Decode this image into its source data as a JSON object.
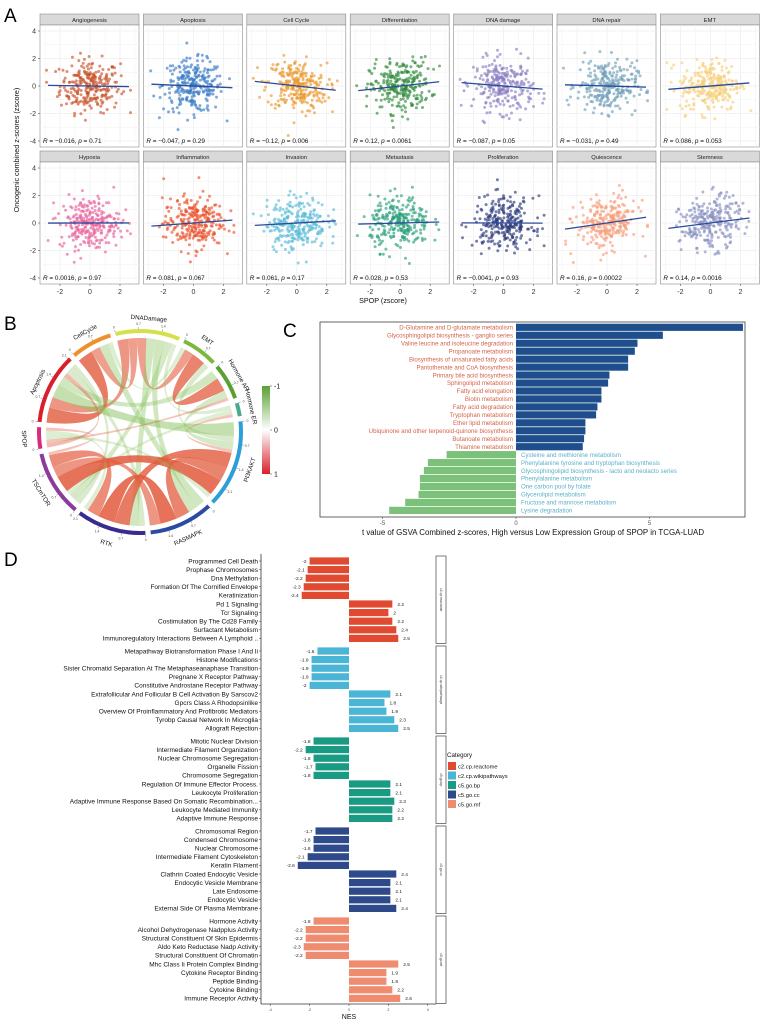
{
  "panel_labels": {
    "a": "A",
    "b": "B",
    "c": "C",
    "d": "D"
  },
  "chart_data": [
    {
      "id": "A",
      "type": "scatter",
      "ylabel": "Oncogenic combined z-scores (zscore)",
      "xlabel": "SPOP (zscore)",
      "xticks": [
        "-2",
        "0",
        "2"
      ],
      "yticks": [
        "4",
        "2",
        "0",
        "-2",
        "-4"
      ],
      "xlim": [
        -3.3,
        3.3
      ],
      "ylim": [
        -4.4,
        4.4
      ],
      "grid": true,
      "points_per_panel": 260,
      "panels": [
        {
          "name": "Angiogenesis",
          "r": -0.016,
          "r_text": "−0.016",
          "p_text": "0.71",
          "color": "#c9532b"
        },
        {
          "name": "Apoptosis",
          "r": -0.047,
          "r_text": "−0.047",
          "p_text": "0.29",
          "color": "#3b7bc6"
        },
        {
          "name": "Cell Cycle",
          "r": -0.12,
          "r_text": "−0.12",
          "p_text": "0.006",
          "color": "#e99a30"
        },
        {
          "name": "Differentiation",
          "r": 0.12,
          "r_text": "0.12",
          "p_text": "0.0061",
          "color": "#2f8a3c"
        },
        {
          "name": "DNA damage",
          "r": -0.087,
          "r_text": "−0.087",
          "p_text": "0.05",
          "color": "#8c7fc2"
        },
        {
          "name": "DNA repair",
          "r": -0.031,
          "r_text": "−0.031",
          "p_text": "0.49",
          "color": "#70a0b9"
        },
        {
          "name": "EMT",
          "r": 0.086,
          "r_text": "0.086",
          "p_text": "0.053",
          "color": "#f6d07a"
        },
        {
          "name": "Hypoxia",
          "r": 0.0016,
          "r_text": "0.0016",
          "p_text": "0.97",
          "color": "#e8629c"
        },
        {
          "name": "Inflammation",
          "r": 0.081,
          "r_text": "0.081",
          "p_text": "0.067",
          "color": "#e9522b"
        },
        {
          "name": "Invasion",
          "r": 0.061,
          "r_text": "0.061",
          "p_text": "0.17",
          "color": "#5bbbd7"
        },
        {
          "name": "Metastasis",
          "r": 0.028,
          "r_text": "0.028",
          "p_text": "0.53",
          "color": "#2aa07c"
        },
        {
          "name": "Proliferation",
          "r": -0.0041,
          "r_text": "−0.0041",
          "p_text": "0.93",
          "color": "#2d3a7c"
        },
        {
          "name": "Quiescence",
          "r": 0.16,
          "r_text": "0.16",
          "p_text": "0.00022",
          "color": "#f79d7a"
        },
        {
          "name": "Stemness",
          "r": 0.14,
          "r_text": "0.14",
          "p_text": "0.0016",
          "color": "#8991c2"
        }
      ],
      "line_color": "#2a4a9a"
    },
    {
      "id": "B",
      "type": "chord",
      "tick_step": 0.7,
      "sectors": [
        {
          "name": "DNADamage",
          "color": "#d5e04b"
        },
        {
          "name": "EMT",
          "color": "#7cb83b"
        },
        {
          "name": "Hormone AR",
          "color": "#5a9f31"
        },
        {
          "name": "Hormone ER",
          "color": "#4aa98a"
        },
        {
          "name": "PI3KAKT",
          "color": "#2b9fd9"
        },
        {
          "name": "RASMAPK",
          "color": "#2b4aa1"
        },
        {
          "name": "RTK",
          "color": "#3a2b8f"
        },
        {
          "name": "TSCmTOR",
          "color": "#8b3b9b"
        },
        {
          "name": "SPOP",
          "color": "#d82b7b"
        },
        {
          "name": "Apoptosis",
          "color": "#d8202b"
        },
        {
          "name": "CellCycle",
          "color": "#f0902b"
        }
      ],
      "chords": [
        [
          "Apoptosis",
          "CellCycle",
          0.5
        ],
        [
          "Apoptosis",
          "DNADamage",
          0.35
        ],
        [
          "Apoptosis",
          "PI3KAKT",
          -0.45
        ],
        [
          "Apoptosis",
          "Hormone AR",
          -0.3
        ],
        [
          "Apoptosis",
          "SPOP",
          0.15
        ],
        [
          "Apoptosis",
          "RTK",
          -0.2
        ],
        [
          "Apoptosis",
          "TSCmTOR",
          -0.2
        ],
        [
          "CellCycle",
          "DNADamage",
          0.3
        ],
        [
          "CellCycle",
          "RASMAPK",
          -0.3
        ],
        [
          "CellCycle",
          "EMT",
          -0.15
        ],
        [
          "DNADamage",
          "EMT",
          0.3
        ],
        [
          "DNADamage",
          "RTK",
          -0.3
        ],
        [
          "DNADamage",
          "RASMAPK",
          -0.3
        ],
        [
          "DNADamage",
          "TSCmTOR",
          -0.25
        ],
        [
          "DNADamage",
          "Hormone ER",
          -0.15
        ],
        [
          "EMT",
          "Hormone AR",
          0.45
        ],
        [
          "EMT",
          "PI3KAKT",
          -0.2
        ],
        [
          "Hormone AR",
          "PI3KAKT",
          -0.25
        ],
        [
          "Hormone AR",
          "SPOP",
          0.1
        ],
        [
          "Hormone ER",
          "TSCmTOR",
          -0.15
        ],
        [
          "Hormone ER",
          "PI3KAKT",
          0.1
        ],
        [
          "PI3KAKT",
          "RTK",
          0.5
        ],
        [
          "PI3KAKT",
          "RASMAPK",
          0.45
        ],
        [
          "PI3KAKT",
          "TSCmTOR",
          0.55
        ],
        [
          "PI3KAKT",
          "SPOP",
          -0.15
        ],
        [
          "RASMAPK",
          "RTK",
          0.55
        ],
        [
          "RASMAPK",
          "TSCmTOR",
          0.35
        ],
        [
          "RTK",
          "TSCmTOR",
          0.4
        ],
        [
          "RTK",
          "SPOP",
          -0.15
        ],
        [
          "SPOP",
          "TSCmTOR",
          0.1
        ]
      ],
      "legend": {
        "ticks": [
          "-1",
          "0",
          "1"
        ],
        "positive_color": "#d8202b",
        "negative_color": "#5aa031"
      }
    },
    {
      "id": "C",
      "type": "bar",
      "orientation": "horizontal",
      "xlabel": "t value of GSVA Combined z-scores, High versus Low Expression Group of SPOP in TCGA-LUAD",
      "xticks": [
        "-5",
        "0",
        "5"
      ],
      "xlim": [
        -7.2,
        8.6
      ],
      "positive_bar_color": "#1f4e8c",
      "negative_bar_color": "#7cc17a",
      "positive_label_color": "#d4634a",
      "negative_label_color": "#5ab0c9",
      "categories": [
        "D-Glutamine and D-glutamate metabolism",
        "Glycosphingolipid biosynthesis - ganglio series",
        "Valine leucine and isoleucine degradation",
        "Propanoate metabolism",
        "Biosynthesis of unsaturated fatty acids",
        "Pantothenate and CoA biosynthesis",
        "Primary bile acid biosynthesis",
        "Sphingolipid metabolism",
        "Fatty acid elongation",
        "Biotin metabolism",
        "Fatty acid degradation",
        "Tryptophan metabolism",
        "Ether lipid metabolism",
        "Ubiquinone and other terpenoid-quinone biosynthesis",
        "Butanoate metabolism",
        "Thiamine metabolism",
        "Cysteine and methionine metabolism",
        "Phenylalanine tyrosine and tryptophan biosynthesis",
        "Glycosphingolipid biosynthesis - lacto and neolacto series",
        "Phenylalanine metabolism",
        "One carbon pool by folate",
        "Glycerolipid metabolism",
        "Fructose and mannose metabolism",
        "Lysine degradation"
      ],
      "values": [
        8.5,
        5.5,
        4.55,
        4.45,
        4.2,
        4.2,
        3.5,
        3.45,
        3.2,
        3.2,
        3.05,
        3.0,
        2.6,
        2.6,
        2.55,
        2.5,
        -2.6,
        -3.3,
        -3.45,
        -3.6,
        -3.6,
        -3.65,
        -4.15,
        -4.75
      ]
    },
    {
      "id": "D",
      "type": "bar",
      "orientation": "horizontal",
      "xlabel": "NES",
      "xticks": [
        "-4",
        "-2",
        "0",
        "2",
        "4"
      ],
      "xlim": [
        -4.5,
        4.5
      ],
      "legend_title": "Category",
      "groups": [
        {
          "name": "c2.cp.reactome",
          "color": "#e04a30",
          "items": [
            {
              "label": "Programmed Cell Death",
              "value": -2,
              "value_text": "-2"
            },
            {
              "label": "Prophase Chromosomes",
              "value": -2.1,
              "value_text": "-2.1"
            },
            {
              "label": "Dna Methylation",
              "value": -2.2,
              "value_text": "-2.2"
            },
            {
              "label": "Formation Of The Cornified Envelope",
              "value": -2.3,
              "value_text": "-2.3"
            },
            {
              "label": "Keratinization",
              "value": -2.4,
              "value_text": "-2.4"
            },
            {
              "label": "Pd 1 Signaling",
              "value": 2.2,
              "value_text": "2.2"
            },
            {
              "label": "Tcr Signaling",
              "value": 2.0,
              "value_text": "2"
            },
            {
              "label": "Costimulation By The Cd28 Family",
              "value": 2.2,
              "value_text": "2.2"
            },
            {
              "label": "Surfactant Metabolism",
              "value": 2.4,
              "value_text": "2.4"
            },
            {
              "label": "Immunoregulatory Interactions Between A Lymphoid ..",
              "value": 2.5,
              "value_text": "2.5"
            }
          ]
        },
        {
          "name": "c2.cp.wikipathways",
          "color": "#4bb5d5",
          "items": [
            {
              "label": "Metapathway Biotransformation Phase I And Ii",
              "value": -1.6,
              "value_text": "-1.6"
            },
            {
              "label": "Histone Modifications",
              "value": -1.9,
              "value_text": "-1.9"
            },
            {
              "label": "Sister Chromatid Separation At The Metaphaseanaphase Transition",
              "value": -1.9,
              "value_text": "-1.9"
            },
            {
              "label": "Pregnane X Receptor Pathway",
              "value": -1.9,
              "value_text": "-1.9"
            },
            {
              "label": "Constitutive Androstane Receptor Pathway",
              "value": -2.0,
              "value_text": "-2"
            },
            {
              "label": "Extrafollicular And Follicular B Cell Activation By Sarscov2",
              "value": 2.1,
              "value_text": "2.1"
            },
            {
              "label": "Gpcrs Class A Rhodopsinlike",
              "value": 1.8,
              "value_text": "1.8"
            },
            {
              "label": "Overview Of Proinflammatory And Profibrotic Mediators",
              "value": 1.9,
              "value_text": "1.9"
            },
            {
              "label": "Tyrobp Causal Network In Microglia",
              "value": 2.3,
              "value_text": "2.3"
            },
            {
              "label": "Allograft Rejection",
              "value": 2.5,
              "value_text": "2.5"
            }
          ]
        },
        {
          "name": "c5.go.bp",
          "color": "#189a83",
          "items": [
            {
              "label": "Mitotic Nuclear Division",
              "value": -1.8,
              "value_text": "-1.8"
            },
            {
              "label": "Intermediate Filament Organization",
              "value": -2.2,
              "value_text": "-2.2"
            },
            {
              "label": "Nuclear Chromosome Segregation",
              "value": -1.8,
              "value_text": "-1.8"
            },
            {
              "label": "Organelle Fission",
              "value": -1.7,
              "value_text": "-1.7"
            },
            {
              "label": "Chromosome Segregation",
              "value": -1.8,
              "value_text": "-1.8"
            },
            {
              "label": "Regulation Of Immune Effector Process.",
              "value": 2.1,
              "value_text": "2.1"
            },
            {
              "label": "Leukocyte Proliferation",
              "value": 2.1,
              "value_text": "2.1"
            },
            {
              "label": "Adaptive Immune Response Based On Somatic Recombination...",
              "value": 2.3,
              "value_text": "2.3"
            },
            {
              "label": "Leukocyte Mediated Immunity",
              "value": 2.2,
              "value_text": "2.2"
            },
            {
              "label": "Adaptive Immune Response",
              "value": 2.2,
              "value_text": "2.2"
            }
          ]
        },
        {
          "name": "c5.go.cc",
          "color": "#2e4a8b",
          "items": [
            {
              "label": "Chromosomal Region",
              "value": -1.7,
              "value_text": "-1.7"
            },
            {
              "label": "Condensed Chromosome",
              "value": -1.8,
              "value_text": "-1.8"
            },
            {
              "label": "Nuclear Chromosome",
              "value": -1.8,
              "value_text": "-1.8"
            },
            {
              "label": "Intermediate Filament Cytoskeleton",
              "value": -2.1,
              "value_text": "-2.1"
            },
            {
              "label": "Keratin Filament",
              "value": -2.6,
              "value_text": "-2.6"
            },
            {
              "label": "Clathrin Coated Endocytic Vesicle",
              "value": 2.4,
              "value_text": "2.4"
            },
            {
              "label": "Endocytic Vesicle Membrane",
              "value": 2.1,
              "value_text": "2.1"
            },
            {
              "label": "Late Endosome",
              "value": 2.1,
              "value_text": "2.1"
            },
            {
              "label": "Endocytic Vesicle",
              "value": 2.1,
              "value_text": "2.1"
            },
            {
              "label": "External Side Of Plasma Membrane",
              "value": 2.4,
              "value_text": "2.4"
            }
          ]
        },
        {
          "name": "c5.go.mf",
          "color": "#ef8c6f",
          "items": [
            {
              "label": "Hormone Activity",
              "value": -1.8,
              "value_text": "-1.8"
            },
            {
              "label": "Alcohol Dehydrogenase Nadpplus Activity",
              "value": -2.2,
              "value_text": "-2.2"
            },
            {
              "label": "Structural Constituent Of Skin Epidermis",
              "value": -2.2,
              "value_text": "-2.2"
            },
            {
              "label": "Aldo Keto Reductase Nadp Activity",
              "value": -2.3,
              "value_text": "-2.3"
            },
            {
              "label": "Structural Constituent Of Chromatin",
              "value": -2.2,
              "value_text": "-2.2"
            },
            {
              "label": "Mhc Class Ii Protein Complex Binding",
              "value": 2.5,
              "value_text": "2.5"
            },
            {
              "label": "Cytokine Receptor Binding",
              "value": 1.9,
              "value_text": "1.9"
            },
            {
              "label": "Peptide Binding",
              "value": 1.9,
              "value_text": "1.9"
            },
            {
              "label": "Cytokine Binding",
              "value": 2.2,
              "value_text": "2.2"
            },
            {
              "label": "Immune Receptor Activity",
              "value": 2.6,
              "value_text": "2.6"
            }
          ]
        }
      ]
    }
  ]
}
